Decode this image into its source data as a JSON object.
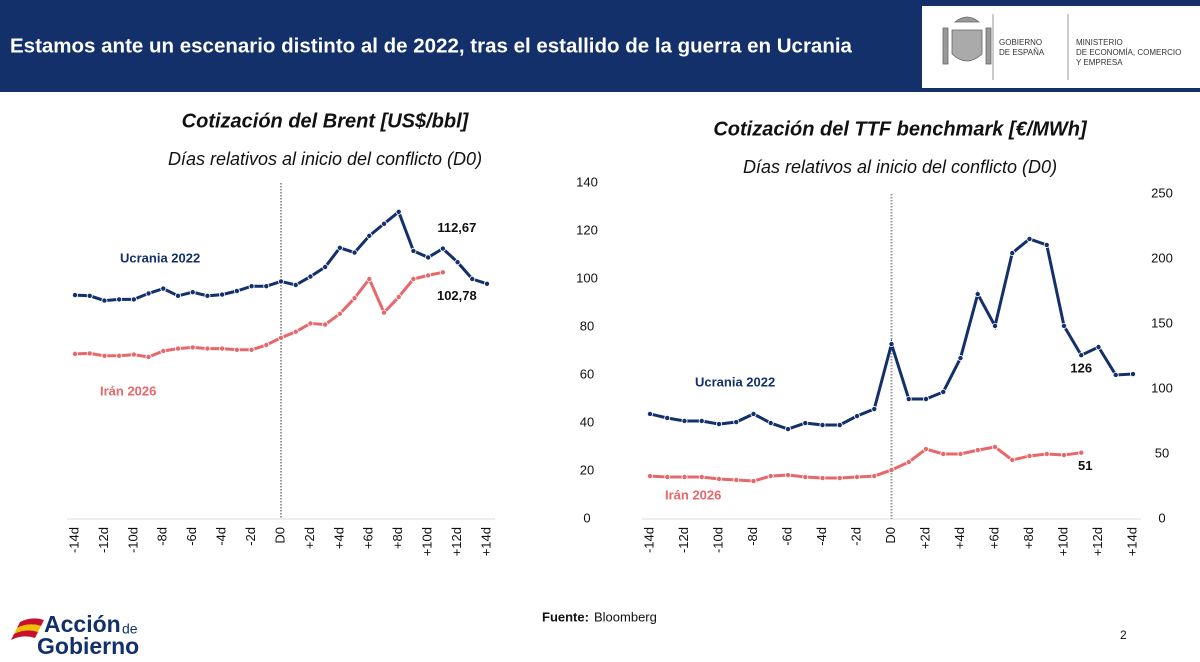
{
  "header": {
    "title": "Estamos ante un escenario distinto al de 2022, tras el estallido de la guerra en Ucrania",
    "gov_line1": "GOBIERNO",
    "gov_line2": "DE ESPAÑA",
    "ministry_line1": "MINISTERIO",
    "ministry_line2": "DE ECONOMÍA, COMERCIO",
    "ministry_line3": "Y EMPRESA"
  },
  "chart_data": [
    {
      "type": "line",
      "title": "Cotización del Brent [US$/bbl]",
      "subtitle": "Días relativos al inicio del conflicto (D0)",
      "categories": [
        "-14d",
        null,
        "-12d",
        null,
        "-10d",
        null,
        "-8d",
        null,
        "-6d",
        null,
        "-4d",
        null,
        "-2d",
        null,
        "D0",
        null,
        "+2d",
        null,
        "+4d",
        null,
        "+6d",
        null,
        "+8d",
        null,
        "+10d",
        null,
        "+12d",
        null,
        "+14d"
      ],
      "ylim": [
        0,
        140
      ],
      "yticks": [
        0,
        20,
        40,
        60,
        80,
        100,
        120,
        140
      ],
      "series": [
        {
          "name": "Ucrania 2022",
          "color": "#13306b",
          "values": [
            93.3,
            93,
            91,
            91.5,
            91.5,
            94,
            96,
            93,
            94.5,
            93,
            93.5,
            95,
            97,
            97,
            99,
            97.5,
            101,
            105,
            113,
            111,
            118,
            123,
            128,
            111.7,
            109,
            112.67,
            107,
            100,
            98
          ],
          "value_labels": [
            null,
            null,
            null,
            null,
            null,
            null,
            null,
            null,
            null,
            null,
            null,
            null,
            null,
            null,
            null,
            null,
            null,
            null,
            null,
            null,
            null,
            null,
            null,
            null,
            null,
            "112,67",
            null,
            null,
            null
          ]
        },
        {
          "name": "Irán 2026",
          "color": "#e8676a",
          "values": [
            68.8,
            69,
            68,
            68,
            68.5,
            67.5,
            70,
            71,
            71.5,
            71,
            71,
            70.5,
            70.5,
            72.5,
            75.5,
            78,
            81.5,
            81,
            85.5,
            92,
            100,
            86,
            92.5,
            100,
            101.5,
            102.78,
            null,
            null,
            null
          ],
          "value_labels": [
            null,
            null,
            null,
            null,
            null,
            null,
            null,
            null,
            null,
            null,
            null,
            null,
            null,
            null,
            null,
            null,
            null,
            null,
            null,
            null,
            null,
            null,
            null,
            null,
            null,
            "102,78",
            null,
            null,
            null
          ]
        }
      ]
    },
    {
      "type": "line",
      "title": "Cotización del TTF benchmark [€/MWh]",
      "subtitle": "Días relativos al inicio del conflicto (D0)",
      "categories": [
        "-14d",
        null,
        "-12d",
        null,
        "-10d",
        null,
        "-8d",
        null,
        "-6d",
        null,
        "-4d",
        null,
        "-2d",
        null,
        "D0",
        null,
        "+2d",
        null,
        "+4d",
        null,
        "+6d",
        null,
        "+8d",
        null,
        "+10d",
        null,
        "+12d",
        null,
        "+14d"
      ],
      "ylim": [
        0,
        250
      ],
      "yticks": [
        0,
        50,
        100,
        150,
        200,
        250
      ],
      "series": [
        {
          "name": "Ucrania 2022",
          "color": "#13306b",
          "values": [
            80.8,
            77.7,
            75.4,
            75.4,
            73,
            74.6,
            80.8,
            73.8,
            69.2,
            73.8,
            72.3,
            72.3,
            79.2,
            84.6,
            134.6,
            92.3,
            92.3,
            97.7,
            123.8,
            173,
            148.5,
            204.6,
            215.4,
            210.8,
            148.5,
            126,
            132.3,
            110.8,
            111.5
          ],
          "value_labels": [
            null,
            null,
            null,
            null,
            null,
            null,
            null,
            null,
            null,
            null,
            null,
            null,
            null,
            null,
            null,
            null,
            null,
            null,
            null,
            null,
            null,
            null,
            null,
            null,
            null,
            "126",
            null,
            null,
            null
          ]
        },
        {
          "name": "Irán 2026",
          "color": "#e8676a",
          "values": [
            33,
            32.3,
            32.3,
            32.3,
            30.8,
            30,
            29.2,
            33,
            33.8,
            32.3,
            31.5,
            31.5,
            32.3,
            33,
            37.7,
            43.8,
            53.8,
            50,
            50,
            53,
            55.4,
            45.4,
            48.5,
            50,
            49.2,
            51,
            null,
            null,
            null
          ],
          "value_labels": [
            null,
            null,
            null,
            null,
            null,
            null,
            null,
            null,
            null,
            null,
            null,
            null,
            null,
            null,
            null,
            null,
            null,
            null,
            null,
            null,
            null,
            null,
            null,
            null,
            null,
            "51",
            null,
            null,
            null
          ]
        }
      ]
    }
  ],
  "footer": {
    "source_label": "Fuente:",
    "source": "Bloomberg",
    "page": "2",
    "logo_word1": "Acción",
    "logo_word2": "de",
    "logo_word3": "Gobierno"
  }
}
